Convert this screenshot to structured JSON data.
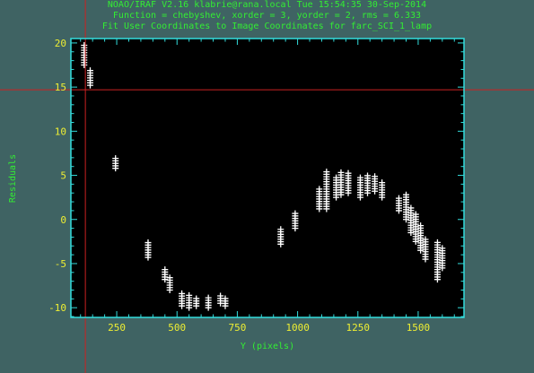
{
  "header": {
    "line1": "NOAO/IRAF V2.16 klabrie@rana.local Tue 15:54:35 30-Sep-2014",
    "line2": "Function = chebyshev, xorder = 3, yorder = 2, rms = 6.333",
    "line3": "Fit User Coordinates to Image Coordinates for farc_SCI_1_lamp"
  },
  "colors": {
    "background": "#3f6363",
    "plot_bg": "#000000",
    "frame": "#33dddd",
    "tick_labels": "#eeee33",
    "titles": "#33ee33",
    "points": "#ffffff",
    "cursor": "#cc2222"
  },
  "chart_data": {
    "type": "scatter",
    "xlabel": "Y (pixels)",
    "ylabel": "Residuals",
    "xlim": [
      60,
      1690
    ],
    "ylim": [
      -11.1,
      20.5
    ],
    "xticks": [
      250,
      500,
      750,
      1000,
      1250,
      1500
    ],
    "yticks": [
      -10,
      -5,
      0,
      5,
      10,
      15,
      20
    ],
    "marker": "plus",
    "cursor": {
      "x": 120,
      "y": 14.7
    },
    "clusters": [
      {
        "x": 115,
        "y_min": 17.5,
        "y_max": 19.8
      },
      {
        "x": 140,
        "y_min": 15.2,
        "y_max": 17.0
      },
      {
        "x": 245,
        "y_min": 5.8,
        "y_max": 7.0
      },
      {
        "x": 380,
        "y_min": -4.3,
        "y_max": -2.5
      },
      {
        "x": 450,
        "y_min": -6.8,
        "y_max": -5.5
      },
      {
        "x": 470,
        "y_min": -8.0,
        "y_max": -6.5
      },
      {
        "x": 520,
        "y_min": -9.8,
        "y_max": -8.3
      },
      {
        "x": 550,
        "y_min": -10.0,
        "y_max": -8.5
      },
      {
        "x": 580,
        "y_min": -9.8,
        "y_max": -8.8
      },
      {
        "x": 630,
        "y_min": -10.0,
        "y_max": -8.8
      },
      {
        "x": 680,
        "y_min": -9.5,
        "y_max": -8.5
      },
      {
        "x": 700,
        "y_min": -9.8,
        "y_max": -8.8
      },
      {
        "x": 930,
        "y_min": -2.8,
        "y_max": -1.0
      },
      {
        "x": 990,
        "y_min": -1.0,
        "y_max": 0.8
      },
      {
        "x": 1090,
        "y_min": 1.2,
        "y_max": 3.5
      },
      {
        "x": 1120,
        "y_min": 1.2,
        "y_max": 5.5
      },
      {
        "x": 1160,
        "y_min": 2.5,
        "y_max": 5.0
      },
      {
        "x": 1180,
        "y_min": 2.8,
        "y_max": 5.5
      },
      {
        "x": 1210,
        "y_min": 3.0,
        "y_max": 5.5
      },
      {
        "x": 1260,
        "y_min": 2.5,
        "y_max": 5.0
      },
      {
        "x": 1290,
        "y_min": 3.0,
        "y_max": 5.2
      },
      {
        "x": 1320,
        "y_min": 3.2,
        "y_max": 5.0
      },
      {
        "x": 1350,
        "y_min": 2.5,
        "y_max": 4.3
      },
      {
        "x": 1420,
        "y_min": 1.0,
        "y_max": 2.5
      },
      {
        "x": 1450,
        "y_min": 0.0,
        "y_max": 2.8
      },
      {
        "x": 1470,
        "y_min": -1.5,
        "y_max": 1.5
      },
      {
        "x": 1490,
        "y_min": -2.5,
        "y_max": 0.8
      },
      {
        "x": 1510,
        "y_min": -3.5,
        "y_max": -0.5
      },
      {
        "x": 1530,
        "y_min": -4.5,
        "y_max": -2.0
      },
      {
        "x": 1580,
        "y_min": -6.8,
        "y_max": -2.5
      },
      {
        "x": 1600,
        "y_min": -5.5,
        "y_max": -3.0
      }
    ]
  }
}
